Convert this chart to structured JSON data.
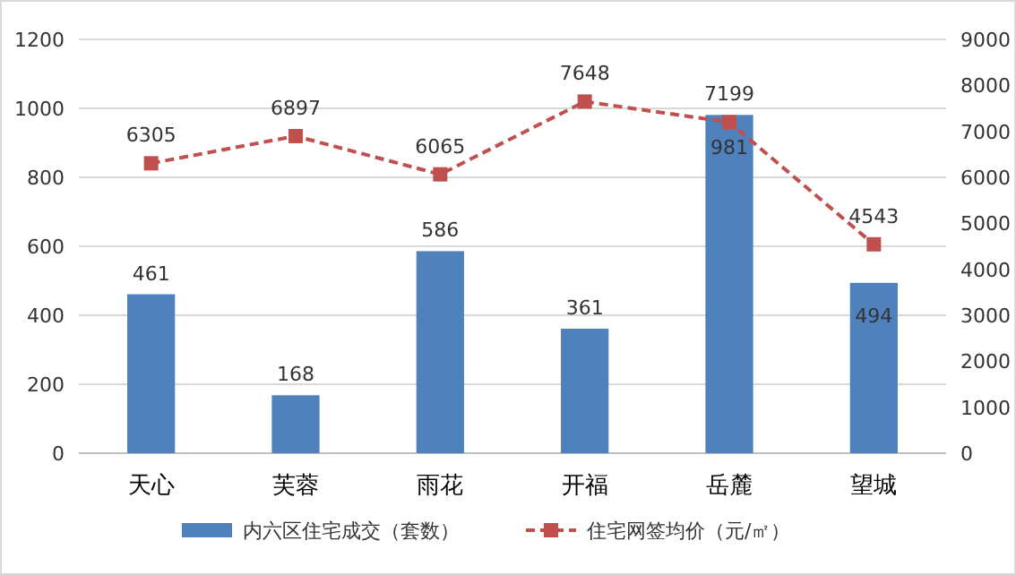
{
  "chart_data": {
    "type": "bar",
    "categories": [
      "天心",
      "芙蓉",
      "雨花",
      "开福",
      "岳麓",
      "望城"
    ],
    "series": [
      {
        "name": "内六区住宅成交（套数）",
        "color": "#4f81bd",
        "values": [
          461,
          168,
          586,
          361,
          981,
          494
        ]
      },
      {
        "name": "住宅网签均价（元/㎡）",
        "type": "line",
        "axis": "y2",
        "color": "#c0504d",
        "values": [
          6305,
          6897,
          6065,
          7648,
          7199,
          4543
        ]
      }
    ],
    "ylim": [
      0,
      1200
    ],
    "yticks": [
      0,
      200,
      400,
      600,
      800,
      1000,
      1200
    ],
    "y2lim": [
      0,
      9000
    ],
    "y2ticks": [
      0,
      1000,
      2000,
      3000,
      4000,
      5000,
      6000,
      7000,
      8000,
      9000
    ],
    "grid": "y",
    "legend": "bottom",
    "data_labels": true,
    "marker": "square",
    "line_style": "dashed"
  }
}
